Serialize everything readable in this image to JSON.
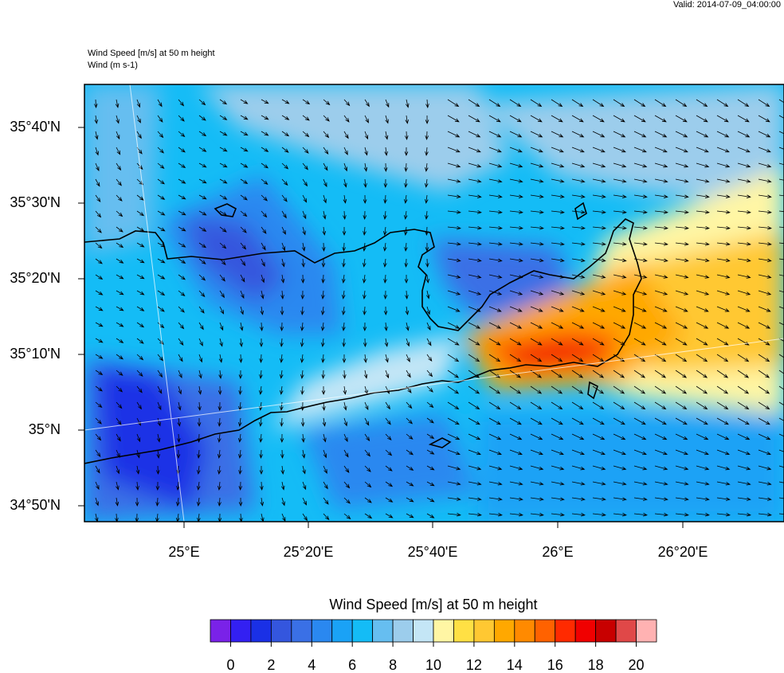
{
  "header": {
    "valid": "Valid: 2014-07-09_04:00:00",
    "title": "Wind Speed [m/s] at 50 m height",
    "subtitle": "Wind   (m s-1)"
  },
  "map": {
    "lat_labels": [
      "35°40'N",
      "35°30'N",
      "35°20'N",
      "35°10'N",
      "35°N",
      "34°50'N"
    ],
    "lon_labels": [
      "25°E",
      "25°20'E",
      "25°40'E",
      "26°E",
      "26°20'E"
    ]
  },
  "colorbar": {
    "title": "Wind Speed [m/s] at 50 m height",
    "colors": [
      "#7a22e8",
      "#3320f2",
      "#1a30e6",
      "#3456de",
      "#3a70e6",
      "#2a88f0",
      "#1aa2f6",
      "#14bcf6",
      "#66bef0",
      "#9ccdec",
      "#c4e6f6",
      "#fff6a4",
      "#ffe044",
      "#ffc832",
      "#ffa800",
      "#ff8a00",
      "#ff6200",
      "#ff2a00",
      "#f00000",
      "#c80000",
      "#e04848",
      "#ffb2b2"
    ],
    "ticks": [
      0,
      2,
      4,
      6,
      8,
      10,
      12,
      14,
      16,
      18,
      20
    ]
  }
}
